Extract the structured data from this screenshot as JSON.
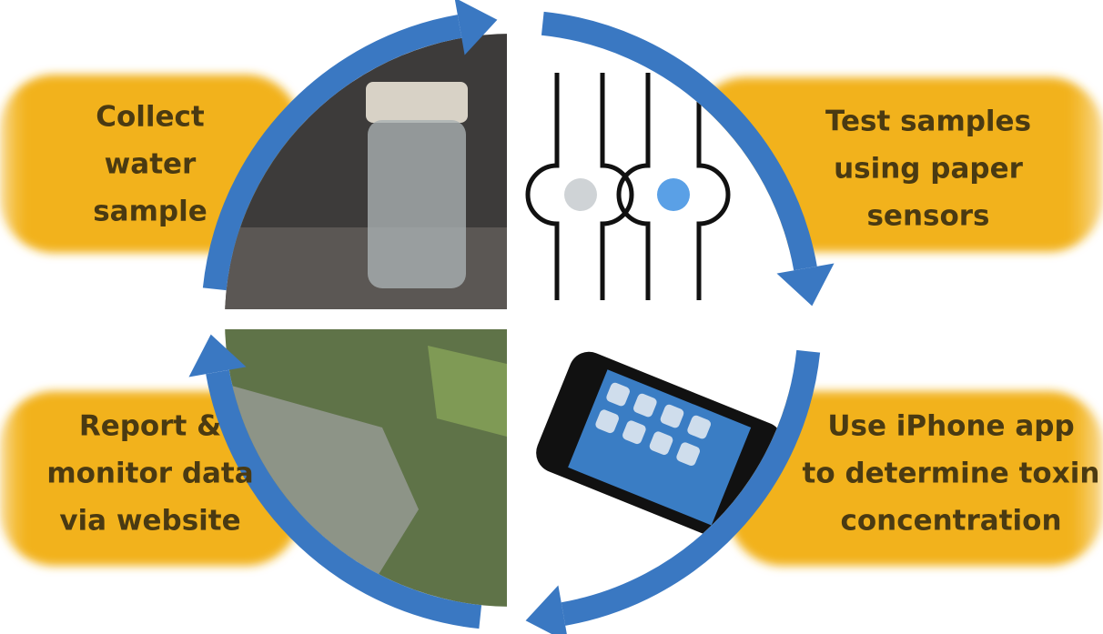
{
  "steps": [
    {
      "lines": [
        "Collect",
        "water",
        "sample"
      ]
    },
    {
      "lines": [
        "Test samples",
        "using paper",
        "sensors"
      ]
    },
    {
      "lines": [
        "Use iPhone app",
        "to determine toxin",
        "concentration"
      ]
    },
    {
      "lines": [
        "Report &",
        "monitor data",
        "via website"
      ]
    }
  ]
}
